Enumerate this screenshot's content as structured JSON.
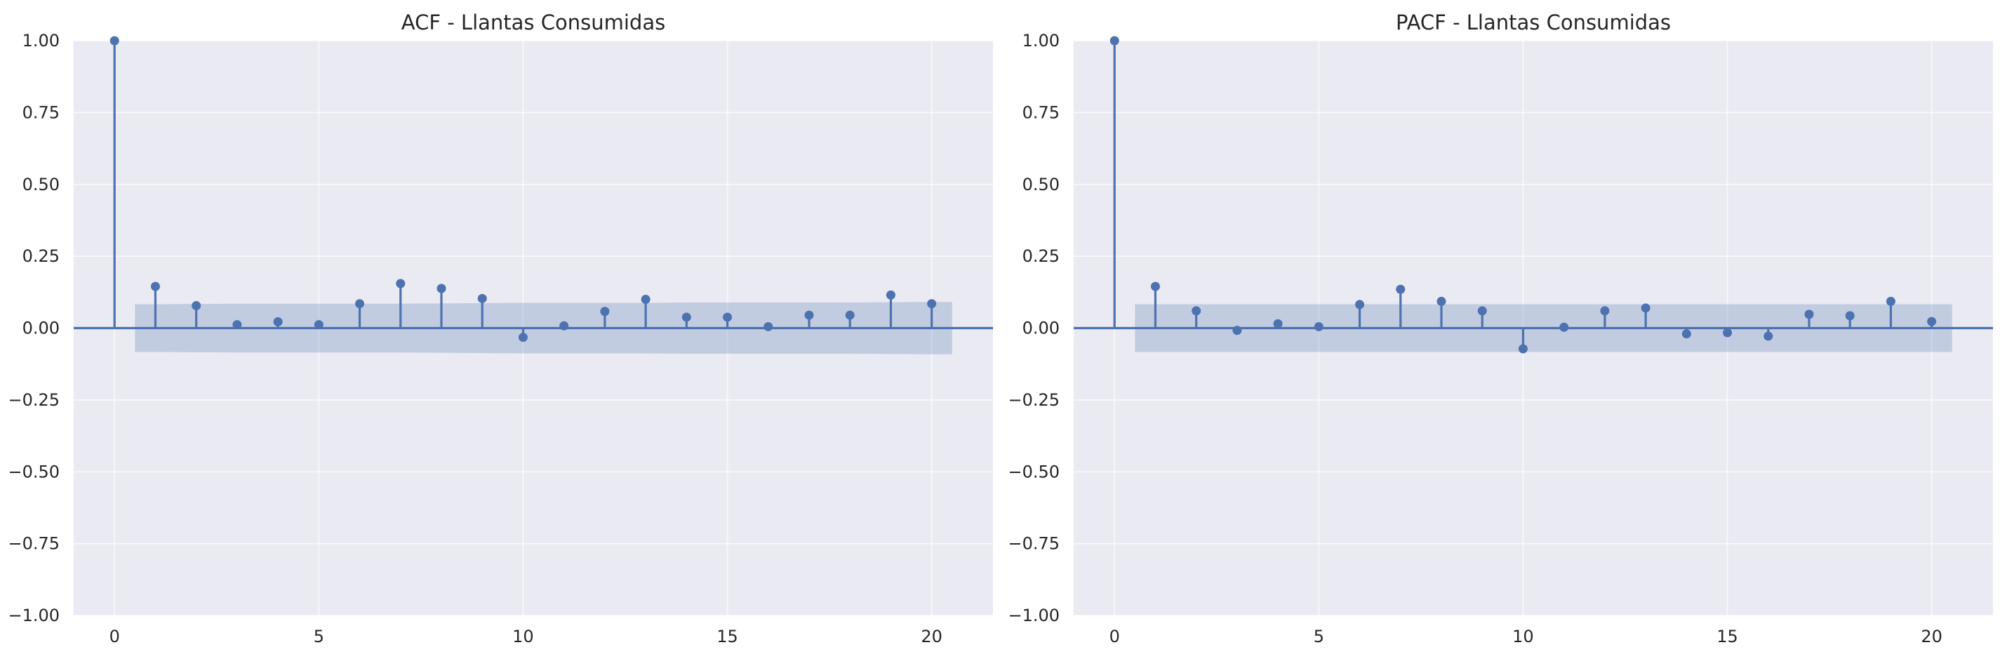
{
  "chart_data": [
    {
      "type": "stem",
      "title": "ACF - Llantas Consumidas",
      "xlabel": "",
      "ylabel": "",
      "x": [
        0,
        1,
        2,
        3,
        4,
        5,
        6,
        7,
        8,
        9,
        10,
        11,
        12,
        13,
        14,
        15,
        16,
        17,
        18,
        19,
        20
      ],
      "values": [
        1.0,
        0.145,
        0.078,
        0.012,
        0.022,
        0.012,
        0.085,
        0.155,
        0.138,
        0.103,
        -0.032,
        0.008,
        0.058,
        0.1,
        0.038,
        0.038,
        0.005,
        0.045,
        0.045,
        0.115,
        0.085
      ],
      "confidence_band": {
        "x": [
          0.5,
          1,
          2,
          3,
          4,
          5,
          6,
          7,
          8,
          9,
          10,
          11,
          12,
          13,
          14,
          15,
          16,
          17,
          18,
          19,
          20,
          20.5
        ],
        "upper": [
          0.083,
          0.083,
          0.084,
          0.085,
          0.085,
          0.085,
          0.085,
          0.085,
          0.086,
          0.087,
          0.088,
          0.088,
          0.088,
          0.088,
          0.089,
          0.089,
          0.089,
          0.089,
          0.089,
          0.09,
          0.091,
          0.091
        ]
      },
      "xlim": [
        -1,
        21.5
      ],
      "ylim": [
        -1.0,
        1.0
      ],
      "xticks": [
        0,
        5,
        10,
        15,
        20
      ],
      "yticks": [
        -1.0,
        -0.75,
        -0.5,
        -0.25,
        0.0,
        0.25,
        0.5,
        0.75,
        1.0
      ],
      "ytick_labels": [
        "−1.00",
        "−0.75",
        "−0.50",
        "−0.25",
        "0.00",
        "0.25",
        "0.50",
        "0.75",
        "1.00"
      ],
      "xtick_labels": [
        "0",
        "5",
        "10",
        "15",
        "20"
      ],
      "grid": true
    },
    {
      "type": "stem",
      "title": "PACF - Llantas Consumidas",
      "xlabel": "",
      "ylabel": "",
      "x": [
        0,
        1,
        2,
        3,
        4,
        5,
        6,
        7,
        8,
        9,
        10,
        11,
        12,
        13,
        14,
        15,
        16,
        17,
        18,
        19,
        20
      ],
      "values": [
        1.0,
        0.145,
        0.06,
        -0.008,
        0.015,
        0.005,
        0.082,
        0.135,
        0.093,
        0.06,
        -0.072,
        0.003,
        0.06,
        0.07,
        -0.02,
        -0.016,
        -0.028,
        0.048,
        0.043,
        0.093,
        0.023
      ],
      "confidence_band": {
        "x": [
          0.5,
          20.5
        ],
        "upper": [
          0.083,
          0.083
        ]
      },
      "xlim": [
        -1,
        21.5
      ],
      "ylim": [
        -1.0,
        1.0
      ],
      "xticks": [
        0,
        5,
        10,
        15,
        20
      ],
      "yticks": [
        -1.0,
        -0.75,
        -0.5,
        -0.25,
        0.0,
        0.25,
        0.5,
        0.75,
        1.0
      ],
      "ytick_labels": [
        "−1.00",
        "−0.75",
        "−0.50",
        "−0.25",
        "0.00",
        "0.25",
        "0.50",
        "0.75",
        "1.00"
      ],
      "xtick_labels": [
        "0",
        "5",
        "10",
        "15",
        "20"
      ],
      "grid": true
    }
  ],
  "colors": {
    "plot_background": "#eaeaf2",
    "grid": "#ffffff",
    "stem": "#4c72b0",
    "band": "#4c72b0",
    "text": "#262626"
  }
}
